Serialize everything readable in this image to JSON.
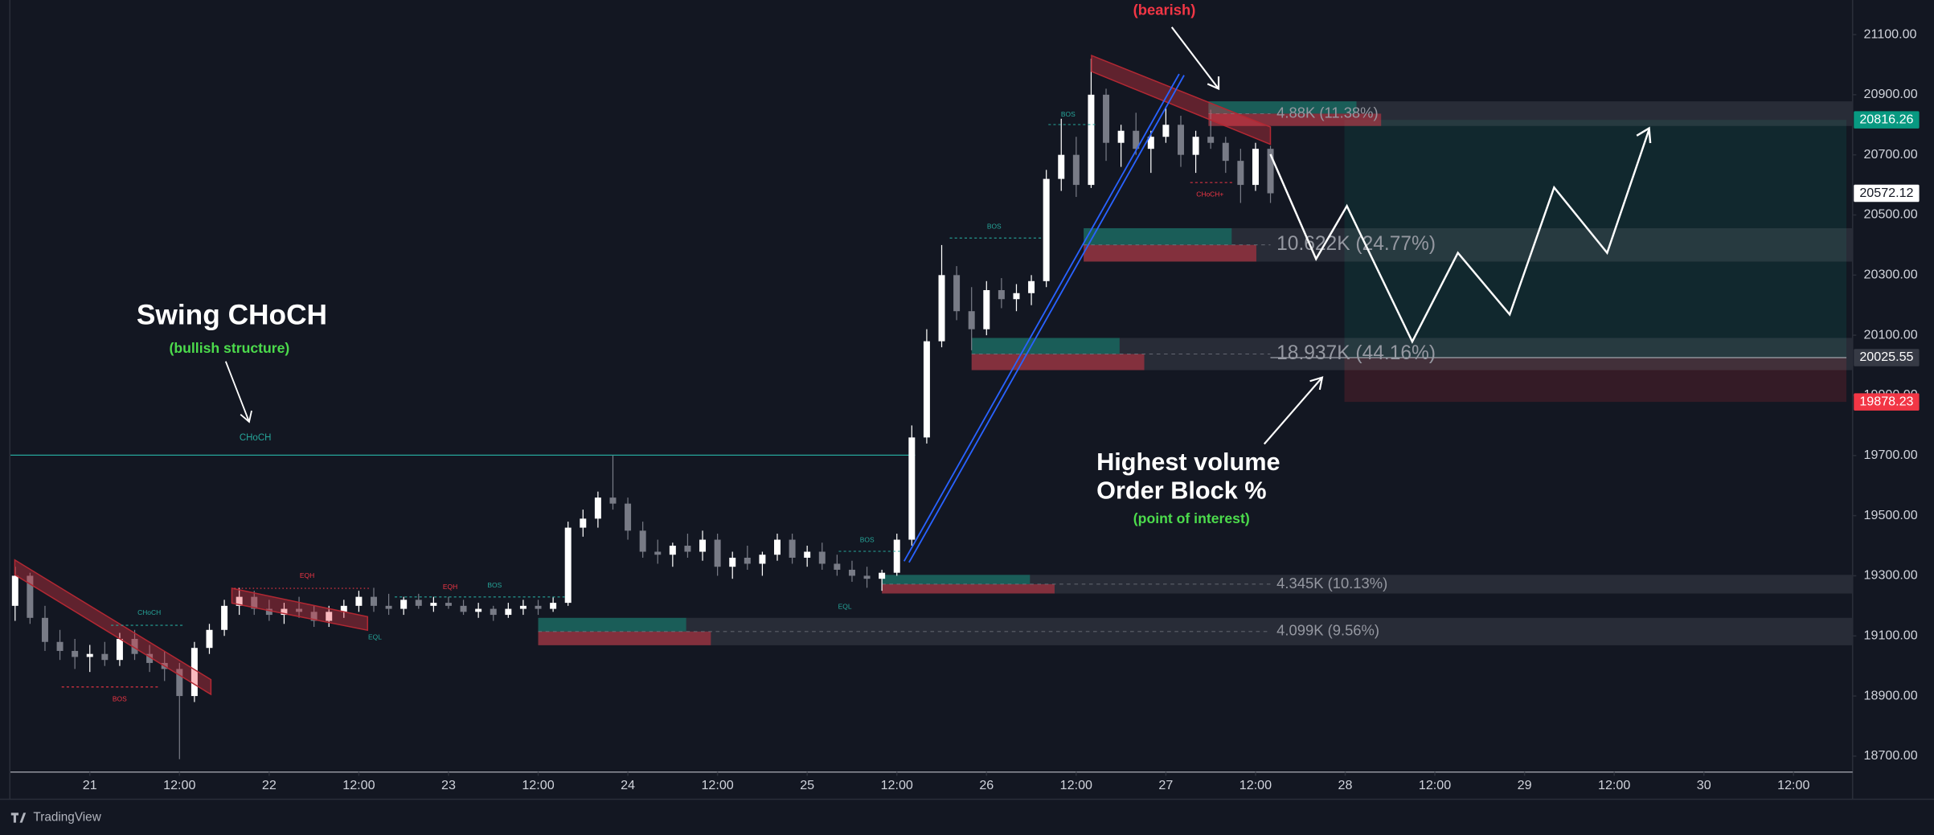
{
  "chart_data": {
    "type": "candlestick",
    "x": [
      -10,
      -8,
      -6,
      -4,
      -2,
      0,
      2,
      4,
      6,
      8,
      10,
      12,
      14,
      16,
      18,
      20,
      22,
      24,
      26,
      28,
      30,
      32,
      34,
      36,
      38,
      40,
      42,
      44,
      46,
      48,
      50,
      52,
      54,
      56,
      58,
      60,
      62,
      64,
      66,
      68,
      70,
      72,
      74,
      76,
      78,
      80,
      82,
      84,
      86,
      88,
      90,
      92,
      94,
      96,
      98,
      100,
      102,
      104,
      106,
      108,
      110,
      112,
      114,
      116,
      118,
      120,
      122,
      124,
      126,
      128,
      130,
      132,
      134,
      136,
      138,
      140,
      142,
      144,
      146,
      148,
      150,
      152,
      154,
      156,
      158
    ],
    "open": [
      19200,
      19300,
      19160,
      19080,
      19050,
      19030,
      19040,
      19020,
      19090,
      19040,
      19010,
      18990,
      18900,
      19060,
      19120,
      19200,
      19230,
      19190,
      19170,
      19190,
      19180,
      19150,
      19180,
      19200,
      19230,
      19200,
      19190,
      19220,
      19200,
      19210,
      19200,
      19180,
      19190,
      19170,
      19190,
      19200,
      19190,
      19210,
      19460,
      19490,
      19560,
      19540,
      19450,
      19380,
      19370,
      19400,
      19380,
      19420,
      19330,
      19360,
      19340,
      19370,
      19420,
      19360,
      19380,
      19340,
      19320,
      19300,
      19290,
      19310,
      19420,
      19760,
      20080,
      20300,
      20180,
      20120,
      20250,
      20220,
      20240,
      20280,
      20620,
      20700,
      20600,
      20900,
      20740,
      20780,
      20720,
      20760,
      20800,
      20700,
      20760,
      20740,
      20680,
      20600,
      20720
    ],
    "high": [
      19330,
      19310,
      19200,
      19120,
      19090,
      19070,
      19080,
      19110,
      19120,
      19070,
      19050,
      19010,
      19080,
      19140,
      19220,
      19260,
      19250,
      19220,
      19210,
      19230,
      19200,
      19200,
      19220,
      19250,
      19260,
      19240,
      19230,
      19240,
      19230,
      19230,
      19220,
      19210,
      19200,
      19210,
      19220,
      19220,
      19230,
      19480,
      19520,
      19580,
      19700,
      19560,
      19480,
      19420,
      19410,
      19440,
      19450,
      19440,
      19380,
      19400,
      19380,
      19440,
      19440,
      19400,
      19410,
      19370,
      19350,
      19330,
      19320,
      19440,
      19800,
      20120,
      20400,
      20330,
      20260,
      20280,
      20290,
      20270,
      20300,
      20650,
      20820,
      20760,
      21020,
      20920,
      20800,
      20840,
      20780,
      20860,
      20830,
      20780,
      20850,
      20760,
      20720,
      20740,
      20730
    ],
    "low": [
      19150,
      19140,
      19050,
      19020,
      18990,
      18980,
      19000,
      19000,
      19020,
      18980,
      18950,
      18690,
      18880,
      19040,
      19100,
      19170,
      19170,
      19150,
      19140,
      19160,
      19130,
      19130,
      19160,
      19180,
      19180,
      19170,
      19170,
      19190,
      19180,
      19190,
      19170,
      19160,
      19150,
      19160,
      19170,
      19170,
      19180,
      19200,
      19430,
      19460,
      19520,
      19420,
      19360,
      19340,
      19330,
      19360,
      19350,
      19300,
      19290,
      19320,
      19300,
      19350,
      19340,
      19330,
      19320,
      19300,
      19280,
      19260,
      19250,
      19300,
      19400,
      19740,
      20060,
      20150,
      20050,
      20100,
      20190,
      20180,
      20200,
      20260,
      20580,
      20560,
      20590,
      20680,
      20660,
      20700,
      20640,
      20740,
      20660,
      20640,
      20720,
      20640,
      20540,
      20580,
      20540
    ],
    "close": [
      19300,
      19160,
      19080,
      19050,
      19030,
      19040,
      19020,
      19090,
      19040,
      19010,
      18990,
      18900,
      19060,
      19120,
      19200,
      19230,
      19190,
      19170,
      19190,
      19180,
      19150,
      19180,
      19200,
      19230,
      19200,
      19190,
      19220,
      19200,
      19210,
      19200,
      19180,
      19190,
      19170,
      19190,
      19200,
      19190,
      19210,
      19460,
      19490,
      19560,
      19540,
      19450,
      19380,
      19370,
      19400,
      19380,
      19420,
      19330,
      19360,
      19340,
      19370,
      19420,
      19360,
      19380,
      19340,
      19320,
      19300,
      19290,
      19310,
      19420,
      19760,
      20080,
      20300,
      20180,
      20120,
      20250,
      20220,
      20240,
      20280,
      20620,
      20700,
      20600,
      20900,
      20740,
      20780,
      20720,
      20760,
      20800,
      20700,
      20760,
      20740,
      20680,
      20600,
      20720,
      20572.12
    ],
    "up_color": "#ffffff",
    "down_color": "#787b86",
    "xlim": [
      -10.7,
      235.9
    ],
    "xticks": [
      {
        "value": 0,
        "label": "21"
      },
      {
        "value": 12,
        "label": "12:00"
      },
      {
        "value": 24,
        "label": "22"
      },
      {
        "value": 36,
        "label": "12:00"
      },
      {
        "value": 48,
        "label": "23"
      },
      {
        "value": 60,
        "label": "12:00"
      },
      {
        "value": 72,
        "label": "24"
      },
      {
        "value": 84,
        "label": "12:00"
      },
      {
        "value": 96,
        "label": "25"
      },
      {
        "value": 108,
        "label": "12:00"
      },
      {
        "value": 120,
        "label": "26"
      },
      {
        "value": 132,
        "label": "12:00"
      },
      {
        "value": 144,
        "label": "27"
      },
      {
        "value": 156,
        "label": "12:00"
      },
      {
        "value": 168,
        "label": "28"
      },
      {
        "value": 180,
        "label": "12:00"
      },
      {
        "value": 192,
        "label": "29"
      },
      {
        "value": 204,
        "label": "12:00"
      },
      {
        "value": 216,
        "label": "30"
      },
      {
        "value": 228,
        "label": "12:00"
      }
    ],
    "ylim": [
      18647,
      21215
    ],
    "yticks": [
      {
        "value": 18700,
        "label": "18700.00"
      },
      {
        "value": 18900,
        "label": "18900.00"
      },
      {
        "value": 19100,
        "label": "19100.00"
      },
      {
        "value": 19300,
        "label": "19300.00"
      },
      {
        "value": 19500,
        "label": "19500.00"
      },
      {
        "value": 19700,
        "label": "19700.00"
      },
      {
        "value": 19900,
        "label": "19900.00"
      },
      {
        "value": 20100,
        "label": "20100.00"
      },
      {
        "value": 20300,
        "label": "20300.00"
      },
      {
        "value": 20500,
        "label": "20500.00"
      },
      {
        "value": 20700,
        "label": "20700.00"
      },
      {
        "value": 20900,
        "label": "20900.00"
      },
      {
        "value": 21100,
        "label": "21100.00"
      }
    ],
    "price_labels": [
      {
        "value": 20816.26,
        "color": "#089981"
      },
      {
        "value": 20572.12,
        "color": "#ffffff"
      },
      {
        "value": 20025.55,
        "color": "#363a45"
      },
      {
        "value": 19878.23,
        "color": "#f23645"
      }
    ],
    "order_blocks": [
      {
        "label": "4.88K (11.38%)",
        "top": 20878,
        "bottom": 20796,
        "start": 149.7
      },
      {
        "label": "10.622K (24.77%)",
        "top": 20456,
        "bottom": 20345,
        "start": 133
      },
      {
        "label": "18.937K (44.16%)",
        "top": 20091,
        "bottom": 19984,
        "start": 118
      },
      {
        "label": "4.345K (10.13%)",
        "top": 19303,
        "bottom": 19241,
        "start": 106
      },
      {
        "label": "4.099K (9.56%)",
        "top": 19160,
        "bottom": 19069,
        "start": 60
      }
    ],
    "choch_level": 19701,
    "annotations": {
      "bearish": "(bearish)",
      "swing_choch": "Swing CHoCH",
      "bullish_structure": "(bullish structure)",
      "choch": "CHoCH",
      "highest_volume": "Highest volume",
      "order_block": "Order Block %",
      "poi": "(point of interest)",
      "small": [
        "CHoCH",
        "BOS",
        "EQH",
        "EQL",
        "EQH",
        "BOS",
        "BOS",
        "EQL",
        "BOS",
        "BOS",
        "CHoCH+"
      ]
    }
  },
  "footer": "TradingView"
}
